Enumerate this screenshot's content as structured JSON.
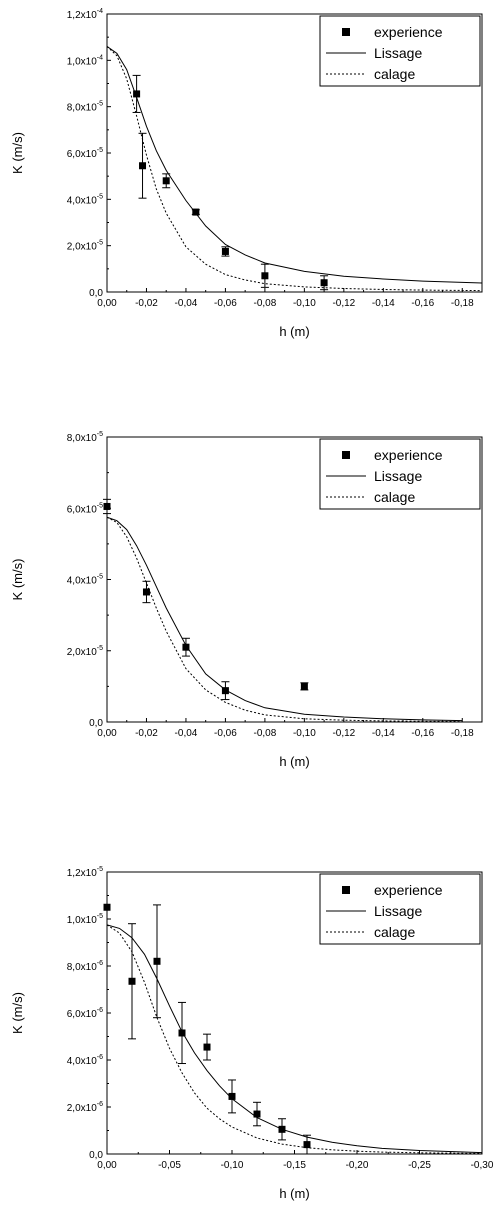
{
  "chart_data": [
    {
      "type": "scatter",
      "xlabel": "h (m)",
      "ylabel": "K (m/s)",
      "xlim": [
        0,
        -0.19
      ],
      "ylim": [
        0,
        0.00012
      ],
      "xticks": [
        0,
        -0.02,
        -0.04,
        -0.06,
        -0.08,
        -0.1,
        -0.12,
        -0.14,
        -0.16,
        -0.18
      ],
      "xtick_labels": [
        "0,00",
        "-0,02",
        "-0,04",
        "-0,06",
        "-0,08",
        "-0,10",
        "-0,12",
        "-0,14",
        "-0,16",
        "-0,18"
      ],
      "yticks": [
        0,
        2e-05,
        4e-05,
        6e-05,
        8e-05,
        0.0001,
        0.00012
      ],
      "ytick_labels": [
        {
          "mant": "0,0",
          "exp": ""
        },
        {
          "mant": "2,0x10",
          "exp": "-5"
        },
        {
          "mant": "4,0x10",
          "exp": "-5"
        },
        {
          "mant": "6,0x10",
          "exp": "-5"
        },
        {
          "mant": "8,0x10",
          "exp": "-5"
        },
        {
          "mant": "1,0x10",
          "exp": "-4"
        },
        {
          "mant": "1,2x10",
          "exp": "-4"
        }
      ],
      "legend": {
        "position": "top-right",
        "entries": [
          "experience",
          "Lissage",
          "calage"
        ]
      },
      "series": [
        {
          "name": "experience",
          "style": "square-markers",
          "x": [
            -0.015,
            -0.018,
            -0.03,
            -0.045,
            -0.06,
            -0.08,
            -0.11
          ],
          "y": [
            8.55e-05,
            5.45e-05,
            4.8e-05,
            3.45e-05,
            1.75e-05,
            7e-06,
            4e-06
          ],
          "err": [
            8e-06,
            1.4e-05,
            3e-06,
            1e-06,
            2e-06,
            5e-06,
            3e-06
          ]
        },
        {
          "name": "Lissage",
          "style": "solid",
          "x": [
            0,
            -0.005,
            -0.01,
            -0.015,
            -0.02,
            -0.025,
            -0.03,
            -0.04,
            -0.05,
            -0.06,
            -0.07,
            -0.08,
            -0.1,
            -0.12,
            -0.14,
            -0.16,
            -0.19
          ],
          "y": [
            0.000106,
            0.000103,
            9.6e-05,
            8.4e-05,
            7.15e-05,
            6.1e-05,
            5.25e-05,
            3.95e-05,
            2.85e-05,
            2.05e-05,
            1.6e-05,
            1.25e-05,
            8.9e-06,
            6.8e-06,
            5.6e-06,
            4.7e-06,
            3.9e-06
          ]
        },
        {
          "name": "calage",
          "style": "dotted",
          "x": [
            0,
            -0.005,
            -0.01,
            -0.015,
            -0.02,
            -0.025,
            -0.03,
            -0.04,
            -0.05,
            -0.06,
            -0.07,
            -0.08,
            -0.1,
            -0.12,
            -0.14,
            -0.16,
            -0.19
          ],
          "y": [
            0.000106,
            0.000102,
            9.2e-05,
            7.6e-05,
            5.9e-05,
            4.45e-05,
            3.4e-05,
            1.95e-05,
            1.2e-05,
            7.5e-06,
            5.2e-06,
            3.6e-06,
            2.2e-06,
            1.5e-06,
            1.1e-06,
            8e-07,
            6e-07
          ]
        }
      ]
    },
    {
      "type": "scatter",
      "xlabel": "h (m)",
      "ylabel": "K (m/s)",
      "xlim": [
        0,
        -0.19
      ],
      "ylim": [
        0,
        8e-05
      ],
      "xticks": [
        0,
        -0.02,
        -0.04,
        -0.06,
        -0.08,
        -0.1,
        -0.12,
        -0.14,
        -0.16,
        -0.18
      ],
      "xtick_labels": [
        "0,00",
        "-0,02",
        "-0,04",
        "-0,06",
        "-0,08",
        "-0,10",
        "-0,12",
        "-0,14",
        "-0,16",
        "-0,18"
      ],
      "yticks": [
        0,
        2e-05,
        4e-05,
        6e-05,
        8e-05
      ],
      "ytick_labels": [
        {
          "mant": "0,0",
          "exp": ""
        },
        {
          "mant": "2,0x10",
          "exp": "-5"
        },
        {
          "mant": "4,0x10",
          "exp": "-5"
        },
        {
          "mant": "6,0x10",
          "exp": "-5"
        },
        {
          "mant": "8,0x10",
          "exp": "-5"
        }
      ],
      "legend": {
        "position": "top-right",
        "entries": [
          "experience",
          "Lissage",
          "calage"
        ]
      },
      "series": [
        {
          "name": "experience",
          "style": "square-markers",
          "x": [
            0,
            -0.02,
            -0.04,
            -0.06,
            -0.1
          ],
          "y": [
            6.05e-05,
            3.65e-05,
            2.1e-05,
            8.8e-06,
            1e-05
          ],
          "err": [
            2e-06,
            3e-06,
            2.5e-06,
            2.5e-06,
            1e-06
          ]
        },
        {
          "name": "Lissage",
          "style": "solid",
          "x": [
            0,
            -0.005,
            -0.01,
            -0.015,
            -0.02,
            -0.025,
            -0.03,
            -0.04,
            -0.05,
            -0.06,
            -0.07,
            -0.08,
            -0.1,
            -0.12,
            -0.14,
            -0.16,
            -0.18
          ],
          "y": [
            5.75e-05,
            5.65e-05,
            5.4e-05,
            4.95e-05,
            4.4e-05,
            3.8e-05,
            3.2e-05,
            2.15e-05,
            1.35e-05,
            9e-06,
            6e-06,
            4e-06,
            2.2e-06,
            1.4e-06,
            9e-07,
            6e-07,
            4e-07
          ]
        },
        {
          "name": "calage",
          "style": "dotted",
          "x": [
            0,
            -0.005,
            -0.01,
            -0.015,
            -0.02,
            -0.025,
            -0.03,
            -0.04,
            -0.05,
            -0.06,
            -0.07,
            -0.08,
            -0.1,
            -0.12,
            -0.14,
            -0.16,
            -0.18
          ],
          "y": [
            5.75e-05,
            5.6e-05,
            5.2e-05,
            4.6e-05,
            3.9e-05,
            3.2e-05,
            2.55e-05,
            1.5e-05,
            9e-06,
            5.5e-06,
            3.3e-06,
            2e-06,
            9e-07,
            5e-07,
            3e-07,
            2e-07,
            1e-07
          ]
        }
      ]
    },
    {
      "type": "scatter",
      "xlabel": "h (m)",
      "ylabel": "K (m/s)",
      "xlim": [
        0,
        -0.3
      ],
      "ylim": [
        0,
        1.2e-05
      ],
      "xticks": [
        0,
        -0.05,
        -0.1,
        -0.15,
        -0.2,
        -0.25,
        -0.3
      ],
      "xtick_labels": [
        "0,00",
        "-0,05",
        "-0,10",
        "-0,15",
        "-0,20",
        "-0,25",
        "-0,30"
      ],
      "yticks": [
        0,
        2e-06,
        4e-06,
        6e-06,
        8e-06,
        1e-05,
        1.2e-05
      ],
      "ytick_labels": [
        {
          "mant": "0,0",
          "exp": ""
        },
        {
          "mant": "2,0x10",
          "exp": "-6"
        },
        {
          "mant": "4,0x10",
          "exp": "-6"
        },
        {
          "mant": "6,0x10",
          "exp": "-6"
        },
        {
          "mant": "8,0x10",
          "exp": "-6"
        },
        {
          "mant": "1,0x10",
          "exp": "-5"
        },
        {
          "mant": "1,2x10",
          "exp": "-5"
        }
      ],
      "legend": {
        "position": "top-right",
        "entries": [
          "experience",
          "Lissage",
          "calage"
        ]
      },
      "series": [
        {
          "name": "experience",
          "style": "square-markers",
          "x": [
            0,
            -0.02,
            -0.04,
            -0.06,
            -0.08,
            -0.1,
            -0.12,
            -0.14,
            -0.16
          ],
          "y": [
            1.05e-05,
            7.35e-06,
            8.2e-06,
            5.15e-06,
            4.55e-06,
            2.45e-06,
            1.7e-06,
            1.05e-06,
            4e-07
          ],
          "err": [
            0,
            2.45e-06,
            2.4e-06,
            1.3e-06,
            5.5e-07,
            7e-07,
            5e-07,
            4.5e-07,
            4e-07
          ]
        },
        {
          "name": "Lissage",
          "style": "solid",
          "x": [
            0,
            -0.01,
            -0.02,
            -0.03,
            -0.04,
            -0.05,
            -0.06,
            -0.07,
            -0.08,
            -0.09,
            -0.1,
            -0.12,
            -0.14,
            -0.16,
            -0.18,
            -0.2,
            -0.22,
            -0.25,
            -0.3
          ],
          "y": [
            9.75e-06,
            9.6e-06,
            9.2e-06,
            8.5e-06,
            7.45e-06,
            6.3e-06,
            5.2e-06,
            4.3e-06,
            3.55e-06,
            2.9e-06,
            2.35e-06,
            1.55e-06,
            1.05e-06,
            7.2e-07,
            5e-07,
            3.5e-07,
            2.4e-07,
            1.5e-07,
            6e-08
          ]
        },
        {
          "name": "calage",
          "style": "dotted",
          "x": [
            0,
            -0.01,
            -0.02,
            -0.03,
            -0.04,
            -0.05,
            -0.06,
            -0.07,
            -0.08,
            -0.09,
            -0.1,
            -0.12,
            -0.14,
            -0.16,
            -0.18,
            -0.2,
            -0.22,
            -0.25,
            -0.3
          ],
          "y": [
            9.75e-06,
            9.4e-06,
            8.6e-06,
            7.3e-06,
            5.8e-06,
            4.5e-06,
            3.45e-06,
            2.6e-06,
            1.95e-06,
            1.5e-06,
            1.15e-06,
            6.8e-07,
            4.2e-07,
            2.7e-07,
            1.8e-07,
            1.2e-07,
            8e-08,
            5e-08,
            2e-08
          ]
        }
      ]
    }
  ]
}
